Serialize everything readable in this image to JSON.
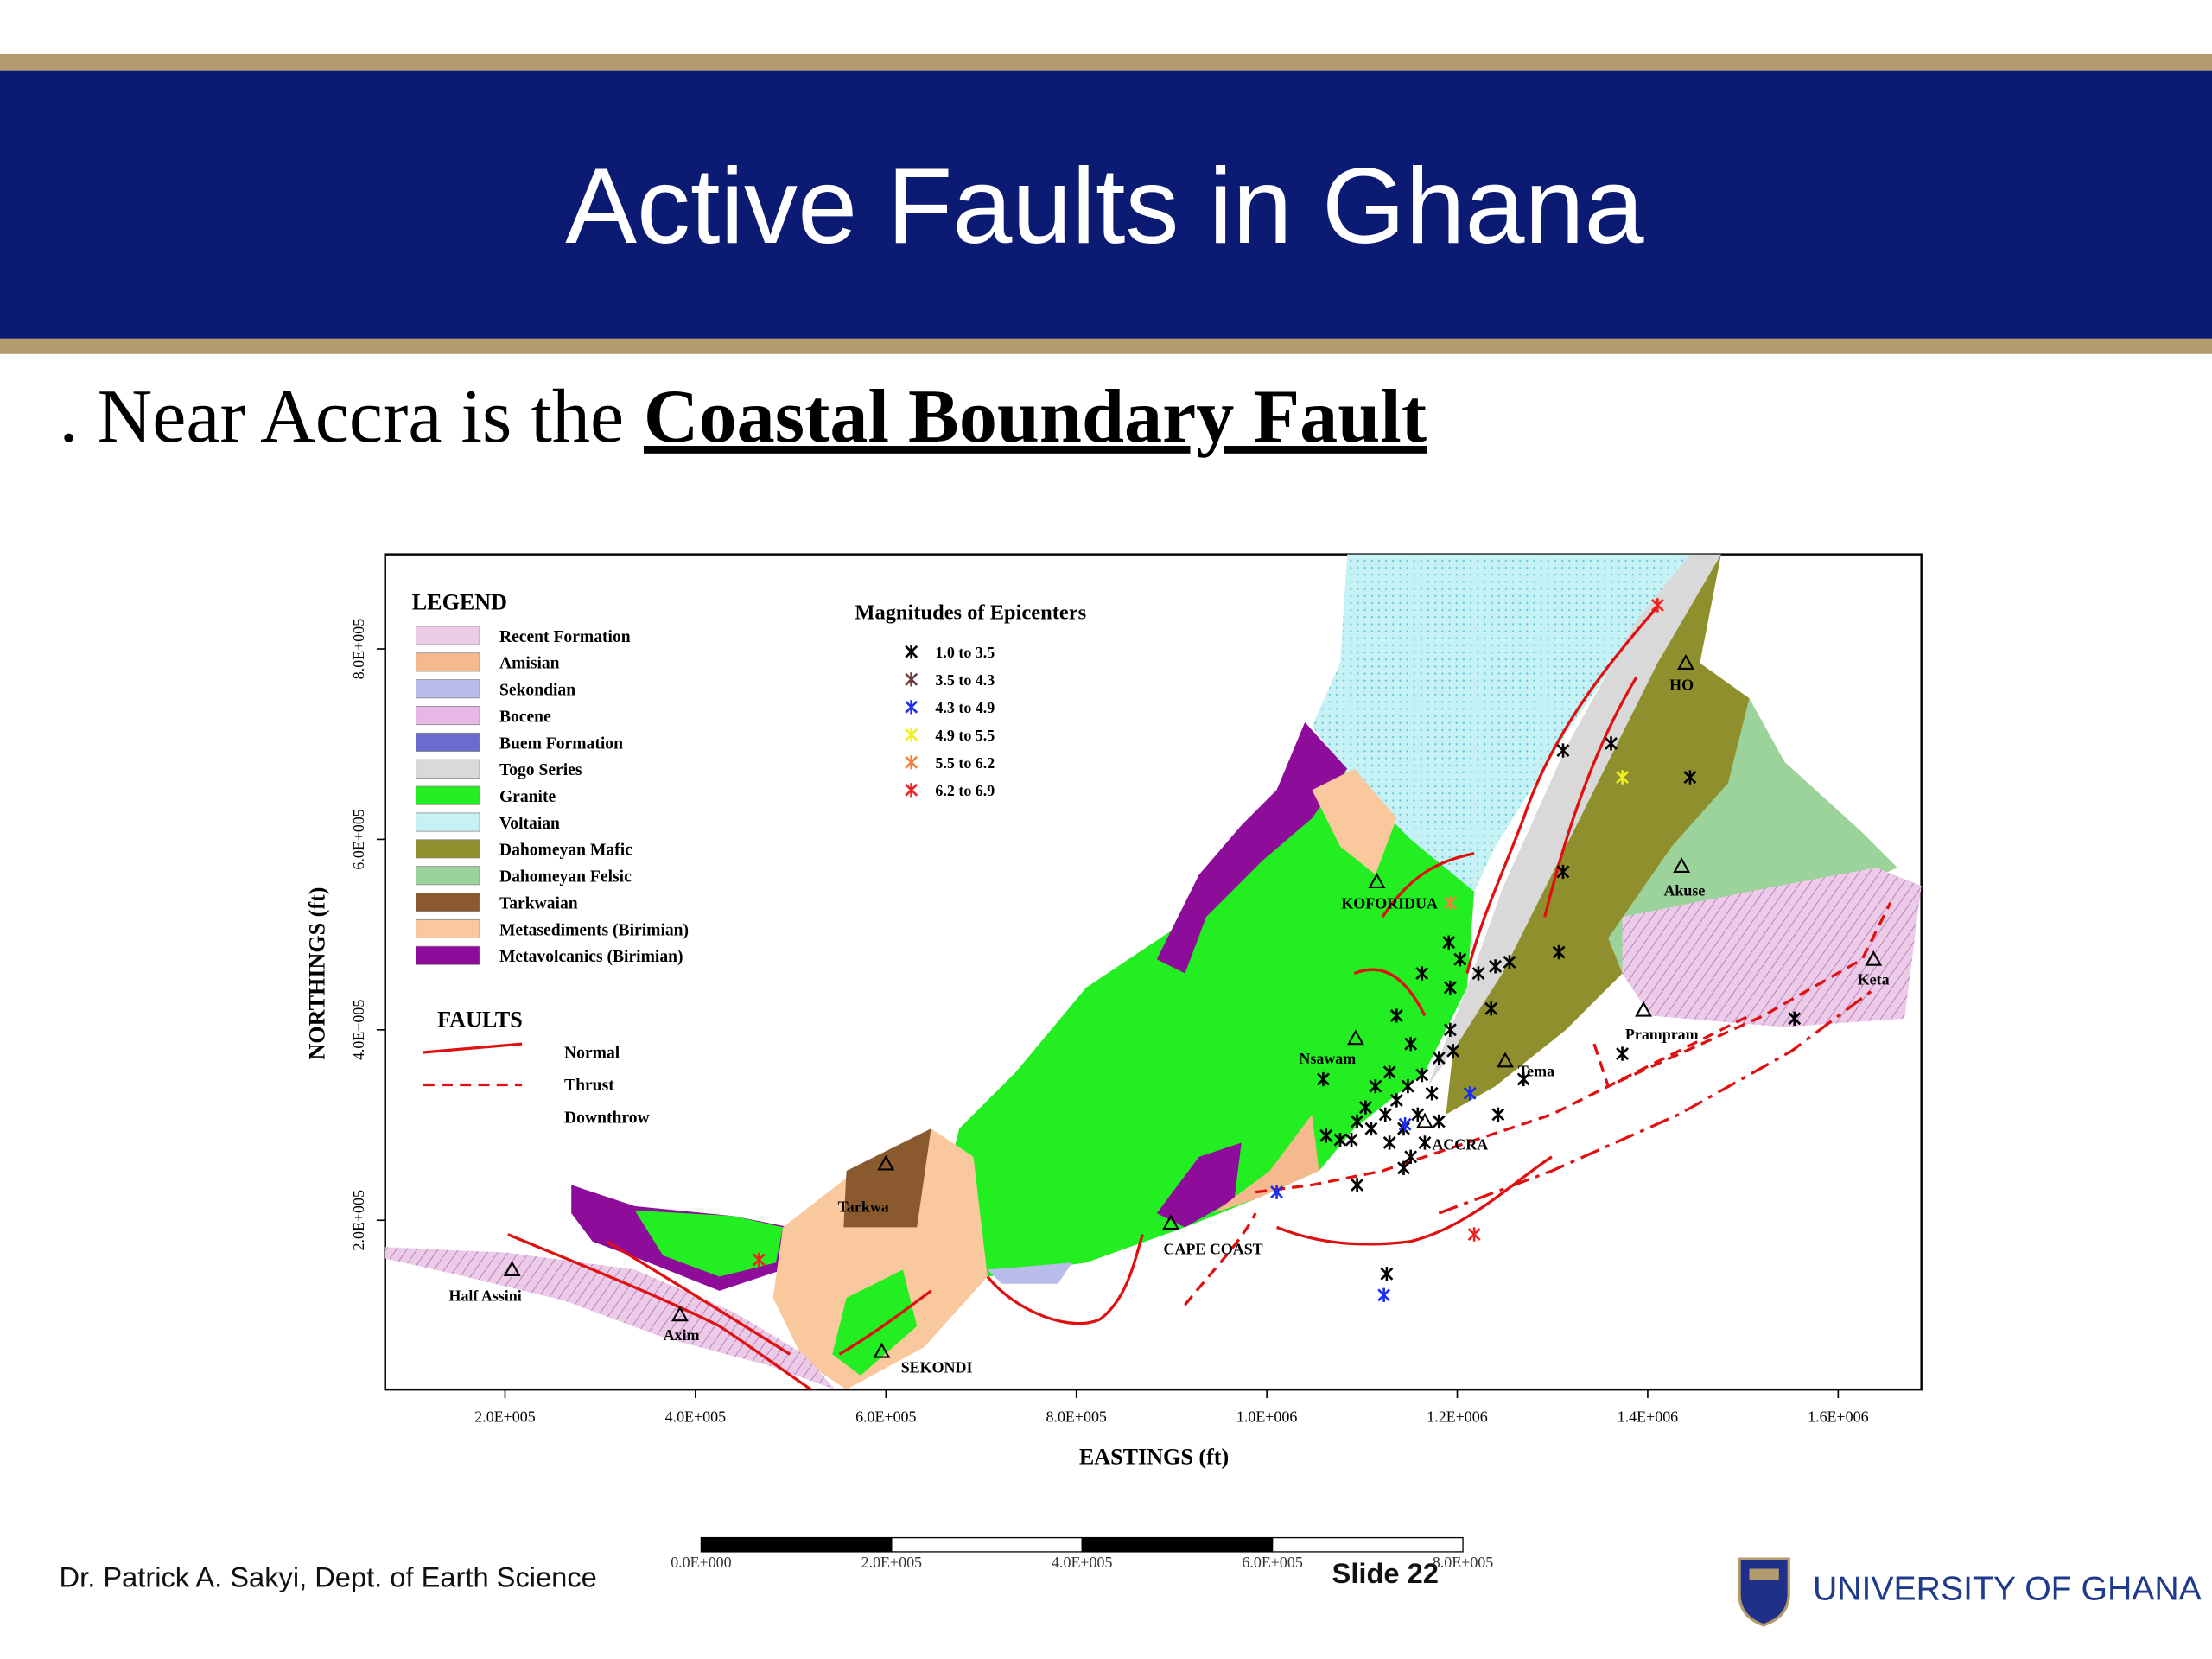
{
  "header": {
    "title": "Active Faults in Ghana"
  },
  "subtitle": {
    "prefix": ". Near Accra is the",
    "emphasis": "Coastal Boundary Fault"
  },
  "map": {
    "legend": {
      "title": "LEGEND",
      "items": [
        {
          "label": "Recent Formation",
          "color": "#eccbe9"
        },
        {
          "label": "Amisian",
          "color": "#f6b98d"
        },
        {
          "label": "Sekondian",
          "color": "#b9bde9"
        },
        {
          "label": "Bocene",
          "color": "#e8b7e6"
        },
        {
          "label": "Buem Formation",
          "color": "#6a6ad0"
        },
        {
          "label": "Togo Series",
          "color": "#d9d9d9"
        },
        {
          "label": "Granite",
          "color": "#22ee22"
        },
        {
          "label": "Voltaian",
          "color": "#c6f2f6"
        },
        {
          "label": "Dahomeyan Mafic",
          "color": "#8f8f2e"
        },
        {
          "label": "Dahomeyan Felsic",
          "color": "#9bd39b"
        },
        {
          "label": "Tarkwaian",
          "color": "#8a5a2e"
        },
        {
          "label": "Metasediments (Birimian)",
          "color": "#f9c89c"
        },
        {
          "label": "Metavolcanics (Birimian)",
          "color": "#8e0c9a"
        }
      ]
    },
    "faults": {
      "title": "FAULTS",
      "items": [
        "Normal",
        "Thrust",
        "Downthrow"
      ]
    },
    "magnitudes": {
      "title": "Magnitudes of Epicenters",
      "items": [
        {
          "label": "1.0  to  3.5",
          "color": "#000000"
        },
        {
          "label": "3.5  to  4.3",
          "color": "#6b3a3a"
        },
        {
          "label": "4.3  to  4.9",
          "color": "#1c2cf0"
        },
        {
          "label": "4.9  to  5.5",
          "color": "#f0f020"
        },
        {
          "label": "5.5  to  6.2",
          "color": "#f08040"
        },
        {
          "label": "6.2  to  6.9",
          "color": "#f02020"
        }
      ]
    },
    "places": [
      "HO",
      "KOFORIDUA",
      "Akuse",
      "Keta",
      "Prampram",
      "Nsawam",
      "Tema",
      "ACCRA",
      "Tarkwa",
      "CAPE COAST",
      "Half Assini",
      "Axim",
      "SEKONDI"
    ],
    "x_axis": {
      "label": "EASTINGS (ft)",
      "ticks": [
        "2.0E+005",
        "4.0E+005",
        "6.0E+005",
        "8.0E+005",
        "1.0E+006",
        "1.2E+006",
        "1.4E+006",
        "1.6E+006"
      ]
    },
    "y_axis": {
      "label": "NORTHINGS (ft)",
      "ticks": [
        "8.0E+005",
        "6.0E+005",
        "4.0E+005",
        "2.0E+005"
      ]
    },
    "scale_bar": {
      "ticks": [
        "0.0E+000",
        "2.0E+005",
        "4.0E+005",
        "6.0E+005",
        "8.0E+005"
      ]
    }
  },
  "footer": {
    "author": "Dr. Patrick A. Sakyi, Dept. of Earth Science",
    "slide": "Slide 22",
    "institution": "UNIVERSITY OF GHANA"
  }
}
